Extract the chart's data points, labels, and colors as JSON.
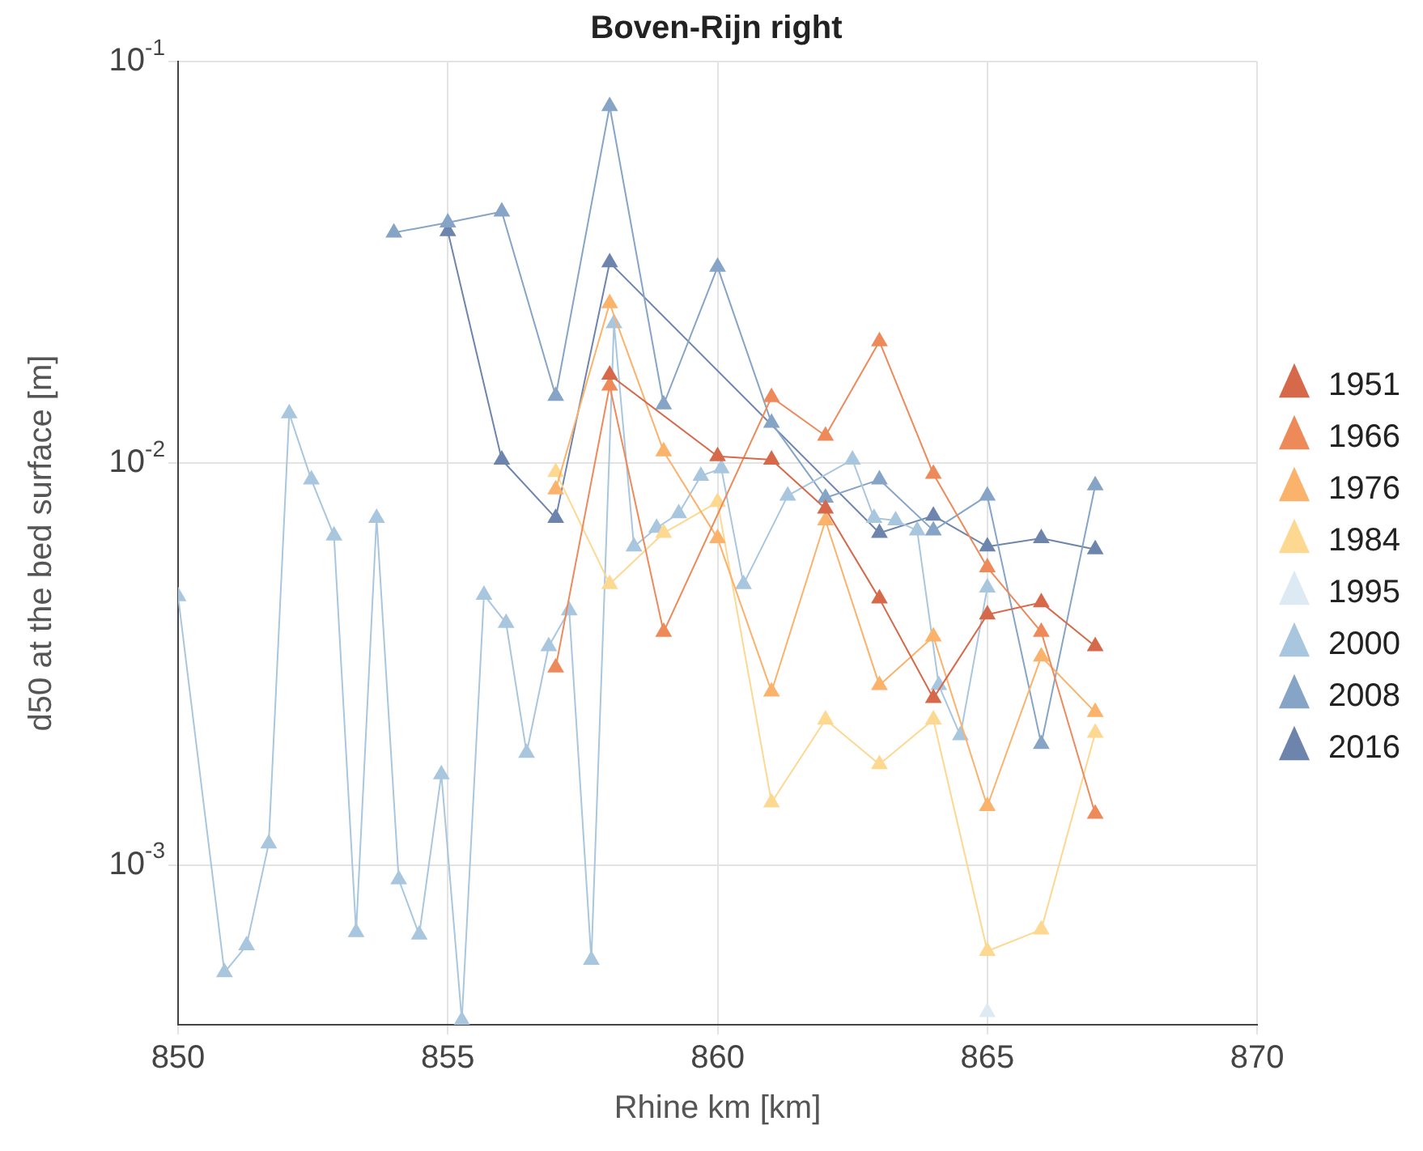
{
  "chart_data": {
    "type": "line",
    "title": "Boven-Rijn right",
    "xlabel": "Rhine km [km]",
    "ylabel": "d50 at the bed surface [m]",
    "xlim": [
      850,
      870
    ],
    "xticks": [
      850,
      855,
      860,
      865,
      870
    ],
    "ylim": [
      0.0004,
      0.1
    ],
    "yticks": [
      {
        "value": 0.001,
        "label": "10$^{-3}$"
      },
      {
        "value": 0.01,
        "label": "10$^{-2}$"
      },
      {
        "value": 0.1,
        "label": "10$^{-1}$"
      }
    ],
    "log": "y",
    "grid": true,
    "legend": "right",
    "marker": "triangle",
    "line_style": "solid",
    "series": [
      {
        "name": "1951",
        "color": "#d6694a",
        "x": [
          858,
          860,
          861,
          862,
          863,
          864,
          865,
          866,
          867
        ],
        "values": [
          0.0166,
          0.0104,
          0.0102,
          0.0077,
          0.0046,
          0.0026,
          0.0042,
          0.0045,
          0.0035
        ]
      },
      {
        "name": "1966",
        "color": "#ee8a5a",
        "x": [
          857,
          858,
          859,
          861,
          862,
          863,
          864,
          865,
          866,
          867
        ],
        "values": [
          0.0031,
          0.0156,
          0.0038,
          0.0146,
          0.0117,
          0.0201,
          0.0094,
          0.0055,
          0.0038,
          0.00134
        ]
      },
      {
        "name": "1976",
        "color": "#fbb26a",
        "x": [
          857,
          858,
          859,
          860,
          861,
          862,
          863,
          864,
          865,
          866,
          867
        ],
        "values": [
          0.0086,
          0.025,
          0.0107,
          0.0065,
          0.0027,
          0.0072,
          0.0028,
          0.0037,
          0.0014,
          0.0033,
          0.0024
        ]
      },
      {
        "name": "1984",
        "color": "#fdd891",
        "x": [
          857,
          858,
          859,
          860,
          861,
          862,
          863,
          864,
          865,
          866,
          867
        ],
        "values": [
          0.0095,
          0.005,
          0.0067,
          0.008,
          0.00143,
          0.0023,
          0.00178,
          0.0023,
          0.00061,
          0.00069,
          0.00213
        ]
      },
      {
        "name": "1995",
        "color": "#dde9f3",
        "x": [
          865
        ],
        "values": [
          0.00043
        ]
      },
      {
        "name": "2000",
        "color": "#a9c6df",
        "x": [
          850,
          850.86,
          851.27,
          851.68,
          852.06,
          852.47,
          852.89,
          853.3,
          853.68,
          854.09,
          854.47,
          854.88,
          855.26,
          855.67,
          856.08,
          856.46,
          856.87,
          857.25,
          857.66,
          858.08,
          858.45,
          858.87,
          859.28,
          859.69,
          860.07,
          860.48,
          861.3,
          862.5,
          862.9,
          863.3,
          863.7,
          864.1,
          864.5,
          865
        ],
        "values": [
          0.00466,
          0.00054,
          0.00063,
          0.00113,
          0.0133,
          0.0091,
          0.0066,
          0.00068,
          0.0073,
          0.00092,
          0.00067,
          0.00168,
          0.00041,
          0.0047,
          0.004,
          0.0019,
          0.0035,
          0.0043,
          0.00058,
          0.0223,
          0.0062,
          0.0069,
          0.0075,
          0.0093,
          0.0097,
          0.005,
          0.0083,
          0.0102,
          0.0073,
          0.0072,
          0.0068,
          0.0028,
          0.0021,
          0.0049
        ]
      },
      {
        "name": "2008",
        "color": "#86a4c6",
        "x": [
          854,
          855,
          856,
          857,
          858,
          859,
          860,
          861,
          862,
          863,
          864,
          865,
          866,
          867
        ],
        "values": [
          0.0375,
          0.0397,
          0.0423,
          0.0147,
          0.0774,
          0.014,
          0.0308,
          0.0126,
          0.0082,
          0.0091,
          0.0068,
          0.0083,
          0.002,
          0.0088
        ]
      },
      {
        "name": "2016",
        "color": "#6d85ad",
        "x": [
          855,
          856,
          857,
          858,
          863,
          864,
          865,
          866,
          867
        ],
        "values": [
          0.0378,
          0.0102,
          0.0073,
          0.0316,
          0.0067,
          0.0074,
          0.0062,
          0.0065,
          0.0061
        ]
      }
    ]
  }
}
